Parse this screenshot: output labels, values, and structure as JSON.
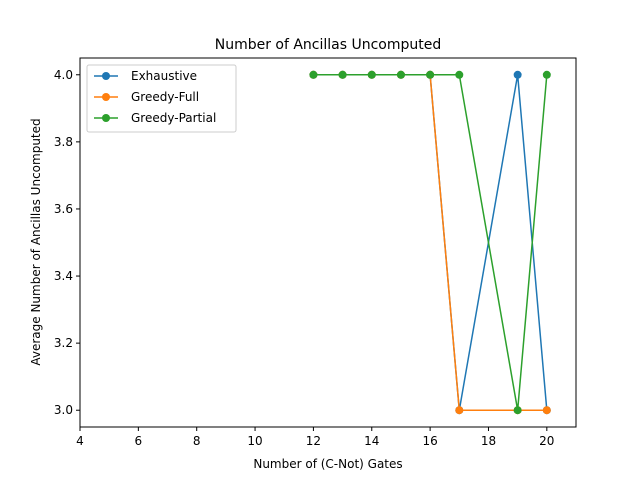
{
  "chart_data": {
    "type": "line",
    "title": "Number of Ancillas Uncomputed",
    "xlabel": "Number of (C-Not) Gates",
    "ylabel": "Average Number of Ancillas Uncomputed",
    "xlim": [
      4,
      21
    ],
    "ylim": [
      2.95,
      4.05
    ],
    "x_ticks": [
      4,
      6,
      8,
      10,
      12,
      14,
      16,
      18,
      20
    ],
    "y_ticks": [
      3.0,
      3.2,
      3.4,
      3.6,
      3.8,
      4.0
    ],
    "x_tick_labels": [
      "4",
      "6",
      "8",
      "10",
      "12",
      "14",
      "16",
      "18",
      "20"
    ],
    "y_tick_labels": [
      "3.0",
      "3.2",
      "3.4",
      "3.6",
      "3.8",
      "4.0"
    ],
    "grid": false,
    "legend_position": "upper-left",
    "series": [
      {
        "name": "Exhaustive",
        "color": "#1f77b4",
        "x": [
          12,
          13,
          14,
          15,
          16,
          17,
          19,
          20
        ],
        "y": [
          4.0,
          4.0,
          4.0,
          4.0,
          4.0,
          3.0,
          4.0,
          3.0
        ]
      },
      {
        "name": "Greedy-Full",
        "color": "#ff7f0e",
        "x": [
          12,
          13,
          14,
          15,
          16,
          17,
          19,
          20
        ],
        "y": [
          4.0,
          4.0,
          4.0,
          4.0,
          4.0,
          3.0,
          3.0,
          3.0
        ]
      },
      {
        "name": "Greedy-Partial",
        "color": "#2ca02c",
        "x": [
          12,
          13,
          14,
          15,
          16,
          17,
          19,
          20
        ],
        "y": [
          4.0,
          4.0,
          4.0,
          4.0,
          4.0,
          4.0,
          3.0,
          4.0
        ]
      }
    ]
  }
}
